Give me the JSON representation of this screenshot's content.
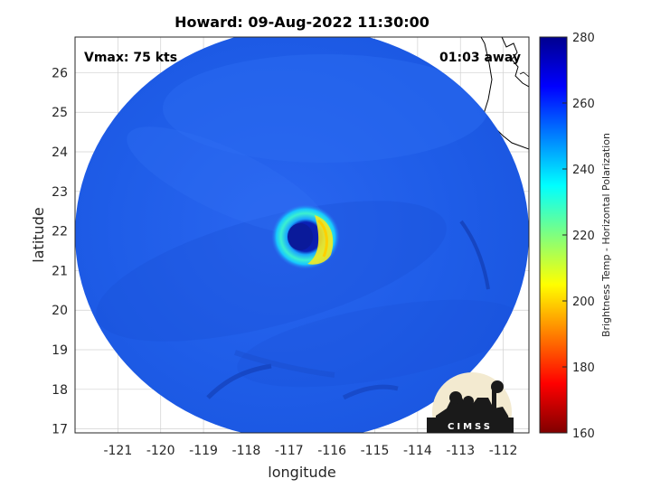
{
  "title": "Howard: 09-Aug-2022 11:30:00",
  "annotations": {
    "vmax": "Vmax: 75 kts",
    "time_away": "01:03 away"
  },
  "logo": {
    "text": "CIMSS"
  },
  "map": {
    "x_axis": {
      "label": "longitude",
      "range": [
        -122,
        -111.4
      ],
      "ticks": [
        -121,
        -120,
        -119,
        -118,
        -117,
        -116,
        -115,
        -114,
        -113,
        -112
      ]
    },
    "y_axis": {
      "label": "latitude",
      "range": [
        16.9,
        26.9
      ],
      "ticks": [
        17,
        18,
        19,
        20,
        21,
        22,
        23,
        24,
        25,
        26
      ]
    },
    "grid": true,
    "swath_color": "#1e5ae6",
    "storm_center": {
      "lon": -116.65,
      "lat": 21.8
    },
    "coastline": "top-right"
  },
  "colorbar": {
    "label": "Brightness Temp - Horizontal Polarization",
    "range": [
      160,
      280
    ],
    "ticks": [
      160,
      180,
      200,
      220,
      240,
      260,
      280
    ],
    "colormap": "jet"
  }
}
